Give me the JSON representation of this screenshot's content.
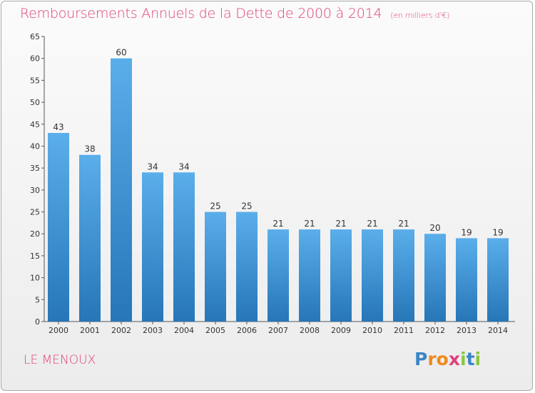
{
  "header": {
    "title": "Remboursements Annuels de la Dette de 2000 à 2014",
    "unit": "(en milliers d'€)"
  },
  "commune": "LE MENOUX",
  "logo": {
    "text": "Proxiti",
    "letters": [
      {
        "ch": "P",
        "color": "#3a86c8"
      },
      {
        "ch": "r",
        "color": "#f08a1c"
      },
      {
        "ch": "o",
        "color": "#f08a1c"
      },
      {
        "ch": "x",
        "color": "#e0407a"
      },
      {
        "ch": "i",
        "color": "#8cc63f"
      },
      {
        "ch": "t",
        "color": "#3a86c8"
      },
      {
        "ch": "i",
        "color": "#8cc63f"
      }
    ]
  },
  "chart_data": {
    "type": "bar",
    "categories": [
      "2000",
      "2001",
      "2002",
      "2003",
      "2004",
      "2005",
      "2006",
      "2007",
      "2008",
      "2009",
      "2010",
      "2011",
      "2012",
      "2013",
      "2014"
    ],
    "values": [
      43,
      38,
      60,
      34,
      34,
      25,
      25,
      21,
      21,
      21,
      21,
      21,
      20,
      19,
      19
    ],
    "ylim": [
      0,
      65
    ],
    "yticks": [
      0,
      5,
      10,
      15,
      20,
      25,
      30,
      35,
      40,
      45,
      50,
      55,
      60,
      65
    ],
    "grid": false,
    "bar_color": "#3a8fd6",
    "label_color": "#333333"
  }
}
